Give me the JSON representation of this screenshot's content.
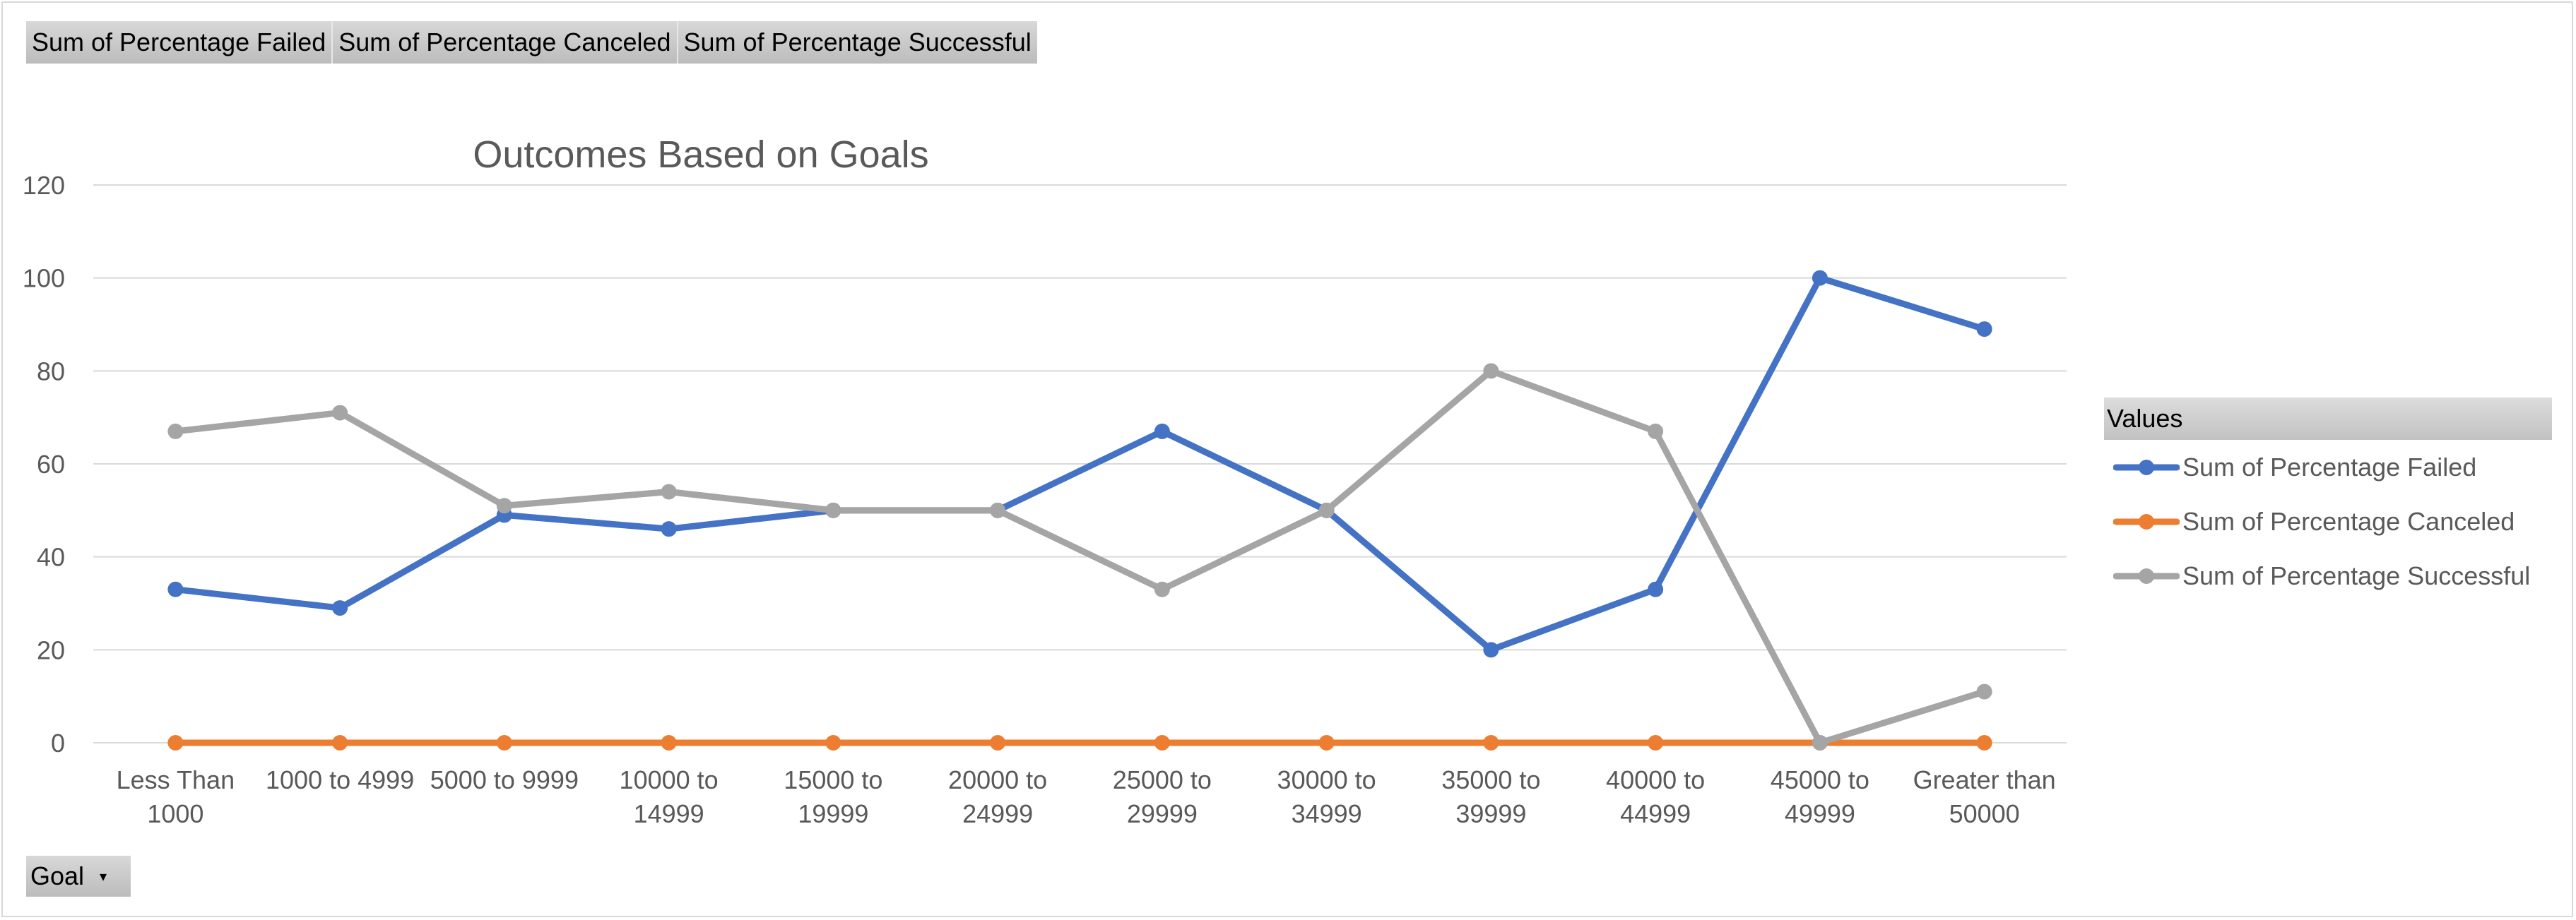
{
  "field_buttons": [
    "Sum of Percentage  Failed",
    "Sum of Percentage  Canceled",
    "Sum of Percentage  Successful"
  ],
  "goal_filter": {
    "label": "Goal",
    "icon": "dropdown-arrow-icon"
  },
  "legend": {
    "title": "Values"
  },
  "chart_data": {
    "type": "line",
    "title": "Outcomes Based on Goals",
    "xlabel": "",
    "ylabel": "",
    "ylim": [
      0,
      120
    ],
    "yticks": [
      "0",
      "20",
      "40",
      "60",
      "80",
      "100",
      "120"
    ],
    "grid": true,
    "legend_position": "right",
    "categories": [
      [
        "Less Than",
        "1000"
      ],
      [
        "1000 to 4999"
      ],
      [
        "5000 to 9999"
      ],
      [
        "10000 to",
        "14999"
      ],
      [
        "15000 to",
        "19999"
      ],
      [
        "20000 to",
        "24999"
      ],
      [
        "25000 to",
        "29999"
      ],
      [
        "30000 to",
        "34999"
      ],
      [
        "35000 to",
        "39999"
      ],
      [
        "40000 to",
        "44999"
      ],
      [
        "45000 to",
        "49999"
      ],
      [
        "Greater than",
        "50000"
      ]
    ],
    "series": [
      {
        "name": "Sum of Percentage Failed",
        "color": "#4472c4",
        "values": [
          33,
          29,
          49,
          46,
          50,
          50,
          67,
          50,
          20,
          33,
          100,
          89
        ]
      },
      {
        "name": "Sum of Percentage Canceled",
        "color": "#ed7d31",
        "values": [
          0,
          0,
          0,
          0,
          0,
          0,
          0,
          0,
          0,
          0,
          0,
          0
        ]
      },
      {
        "name": "Sum of Percentage Successful",
        "color": "#a5a5a5",
        "values": [
          67,
          71,
          51,
          54,
          50,
          50,
          33,
          50,
          80,
          67,
          0,
          11
        ]
      }
    ]
  }
}
